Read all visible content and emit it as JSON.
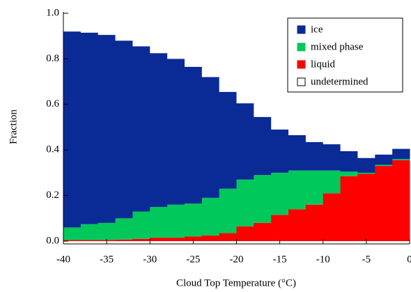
{
  "chart_data": {
    "type": "stacked-histogram",
    "x_label": "Cloud Top Temperature (°C)",
    "y_label": "Fraction",
    "bins": [
      -40,
      -38,
      -36,
      -34,
      -32,
      -30,
      -28,
      -26,
      -24,
      -22,
      -20,
      -18,
      -16,
      -14,
      -12,
      -10,
      -8,
      -6,
      -4,
      -2,
      0
    ],
    "series": [
      {
        "name": "liquid",
        "color": "#ff0000",
        "values": [
          0.005,
          0.005,
          0.005,
          0.007,
          0.01,
          0.015,
          0.015,
          0.02,
          0.025,
          0.035,
          0.065,
          0.08,
          0.115,
          0.14,
          0.16,
          0.21,
          0.285,
          0.295,
          0.33,
          0.355
        ]
      },
      {
        "name": "mixed phase",
        "color": "#00c85a",
        "values": [
          0.055,
          0.07,
          0.075,
          0.093,
          0.12,
          0.135,
          0.145,
          0.145,
          0.165,
          0.195,
          0.205,
          0.21,
          0.185,
          0.17,
          0.15,
          0.1,
          0.02,
          0.005,
          0.005,
          0.005
        ]
      },
      {
        "name": "ice",
        "color": "#0a2a96",
        "values": [
          0.86,
          0.84,
          0.825,
          0.78,
          0.725,
          0.675,
          0.64,
          0.6,
          0.53,
          0.425,
          0.335,
          0.255,
          0.19,
          0.155,
          0.125,
          0.115,
          0.09,
          0.065,
          0.045,
          0.045
        ]
      },
      {
        "name": "undetermined",
        "color": "#ffffff",
        "values": [
          0.08,
          0.085,
          0.095,
          0.12,
          0.145,
          0.175,
          0.2,
          0.235,
          0.28,
          0.345,
          0.395,
          0.455,
          0.51,
          0.535,
          0.565,
          0.575,
          0.605,
          0.635,
          0.62,
          0.595
        ]
      }
    ],
    "legend_order": [
      2,
      1,
      0,
      3
    ],
    "xlim": [
      -40,
      0
    ],
    "ylim": [
      0,
      1
    ],
    "xticks": [
      -40,
      -35,
      -30,
      -25,
      -20,
      -15,
      -10,
      -5,
      0
    ],
    "yticks": [
      {
        "value": 0,
        "label": "0.0"
      },
      0.2,
      0.4,
      0.6,
      0.8,
      {
        "value": 1,
        "label": "1.0"
      }
    ]
  }
}
